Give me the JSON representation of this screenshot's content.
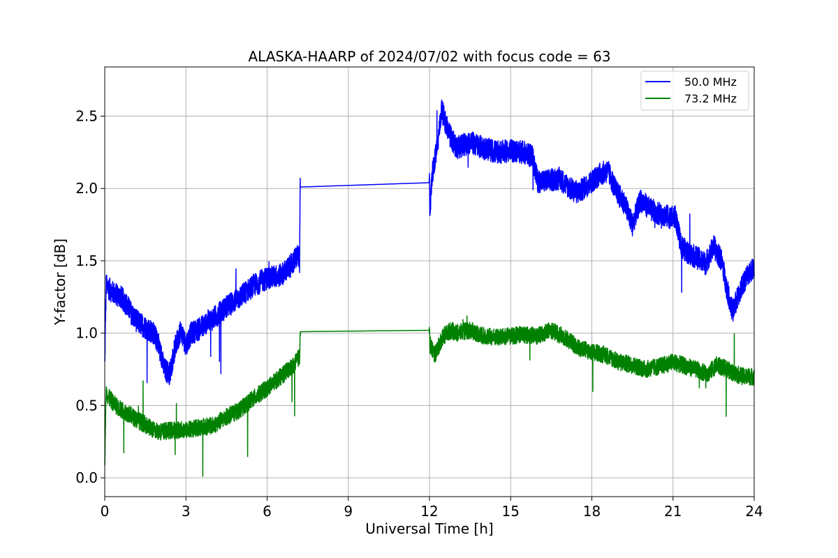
{
  "chart_data": {
    "type": "line",
    "title": "ALASKA-HAARP of 2024/07/02 with focus code = 63",
    "xlabel": "Universal Time [h]",
    "ylabel": "Y-factor [dB]",
    "xlim": [
      0,
      24
    ],
    "ylim": [
      -0.13,
      2.84
    ],
    "xticks": [
      0,
      3,
      6,
      9,
      12,
      15,
      18,
      21,
      24
    ],
    "yticks": [
      0.0,
      0.5,
      1.0,
      1.5,
      2.0,
      2.5
    ],
    "xtick_labels": [
      "0",
      "3",
      "6",
      "9",
      "12",
      "15",
      "18",
      "21",
      "24"
    ],
    "ytick_labels": [
      "0.0",
      "0.5",
      "1.0",
      "1.5",
      "2.0",
      "2.5"
    ],
    "grid": true,
    "legend_position": "top-right",
    "series": [
      {
        "name": "50.0 MHz",
        "color": "#0000ff",
        "points": [
          [
            0.0,
            0.78
          ],
          [
            0.05,
            1.33
          ],
          [
            0.3,
            1.28
          ],
          [
            0.6,
            1.25
          ],
          [
            0.8,
            1.2
          ],
          [
            1.0,
            1.13
          ],
          [
            1.2,
            1.08
          ],
          [
            1.5,
            1.04
          ],
          [
            1.8,
            1.0
          ],
          [
            2.0,
            0.92
          ],
          [
            2.2,
            0.75
          ],
          [
            2.4,
            0.72
          ],
          [
            2.6,
            0.9
          ],
          [
            2.8,
            1.02
          ],
          [
            3.0,
            0.92
          ],
          [
            3.2,
            1.0
          ],
          [
            3.5,
            1.03
          ],
          [
            3.8,
            1.08
          ],
          [
            4.0,
            1.1
          ],
          [
            4.5,
            1.18
          ],
          [
            5.0,
            1.25
          ],
          [
            5.5,
            1.33
          ],
          [
            6.0,
            1.38
          ],
          [
            6.5,
            1.4
          ],
          [
            6.8,
            1.45
          ],
          [
            7.0,
            1.5
          ],
          [
            7.15,
            1.55
          ],
          [
            7.2,
            1.45
          ],
          [
            7.22,
            2.01
          ],
          [
            12.0,
            2.04
          ],
          [
            12.02,
            1.85
          ],
          [
            12.1,
            2.1
          ],
          [
            12.3,
            2.3
          ],
          [
            12.45,
            2.55
          ],
          [
            12.6,
            2.45
          ],
          [
            12.8,
            2.35
          ],
          [
            13.0,
            2.28
          ],
          [
            13.5,
            2.32
          ],
          [
            14.0,
            2.28
          ],
          [
            14.5,
            2.25
          ],
          [
            15.0,
            2.26
          ],
          [
            15.5,
            2.25
          ],
          [
            15.8,
            2.22
          ],
          [
            16.0,
            2.05
          ],
          [
            16.3,
            2.05
          ],
          [
            16.8,
            2.07
          ],
          [
            17.2,
            2.0
          ],
          [
            17.5,
            1.97
          ],
          [
            18.0,
            2.05
          ],
          [
            18.3,
            2.1
          ],
          [
            18.6,
            2.12
          ],
          [
            18.9,
            1.98
          ],
          [
            19.2,
            1.9
          ],
          [
            19.5,
            1.75
          ],
          [
            19.8,
            1.92
          ],
          [
            20.2,
            1.85
          ],
          [
            20.6,
            1.82
          ],
          [
            20.9,
            1.8
          ],
          [
            21.1,
            1.8
          ],
          [
            21.3,
            1.6
          ],
          [
            21.6,
            1.55
          ],
          [
            21.9,
            1.52
          ],
          [
            22.2,
            1.48
          ],
          [
            22.5,
            1.6
          ],
          [
            22.8,
            1.5
          ],
          [
            23.0,
            1.3
          ],
          [
            23.2,
            1.15
          ],
          [
            23.4,
            1.25
          ],
          [
            23.6,
            1.35
          ],
          [
            23.8,
            1.42
          ],
          [
            24.0,
            1.45
          ]
        ]
      },
      {
        "name": "73.2 MHz",
        "color": "#008000",
        "points": [
          [
            0.0,
            0.1
          ],
          [
            0.05,
            0.58
          ],
          [
            0.3,
            0.52
          ],
          [
            0.6,
            0.47
          ],
          [
            0.9,
            0.44
          ],
          [
            1.2,
            0.4
          ],
          [
            1.5,
            0.37
          ],
          [
            1.8,
            0.33
          ],
          [
            2.1,
            0.32
          ],
          [
            2.5,
            0.33
          ],
          [
            3.0,
            0.33
          ],
          [
            3.5,
            0.35
          ],
          [
            4.0,
            0.36
          ],
          [
            4.5,
            0.42
          ],
          [
            5.0,
            0.47
          ],
          [
            5.5,
            0.55
          ],
          [
            6.0,
            0.62
          ],
          [
            6.5,
            0.7
          ],
          [
            7.0,
            0.78
          ],
          [
            7.2,
            0.84
          ],
          [
            7.22,
            1.01
          ],
          [
            12.0,
            1.02
          ],
          [
            12.02,
            0.92
          ],
          [
            12.2,
            0.85
          ],
          [
            12.5,
            0.98
          ],
          [
            12.8,
            1.02
          ],
          [
            13.0,
            1.0
          ],
          [
            13.5,
            1.02
          ],
          [
            14.0,
            0.98
          ],
          [
            14.5,
            0.97
          ],
          [
            15.0,
            0.98
          ],
          [
            15.5,
            0.99
          ],
          [
            16.0,
            0.98
          ],
          [
            16.5,
            1.02
          ],
          [
            17.0,
            0.97
          ],
          [
            17.5,
            0.9
          ],
          [
            18.0,
            0.87
          ],
          [
            18.5,
            0.85
          ],
          [
            19.0,
            0.8
          ],
          [
            19.5,
            0.78
          ],
          [
            20.0,
            0.75
          ],
          [
            20.5,
            0.77
          ],
          [
            21.0,
            0.8
          ],
          [
            21.5,
            0.77
          ],
          [
            22.0,
            0.74
          ],
          [
            22.3,
            0.72
          ],
          [
            22.6,
            0.78
          ],
          [
            23.0,
            0.75
          ],
          [
            23.3,
            0.72
          ],
          [
            23.6,
            0.7
          ],
          [
            24.0,
            0.7
          ]
        ]
      }
    ]
  }
}
